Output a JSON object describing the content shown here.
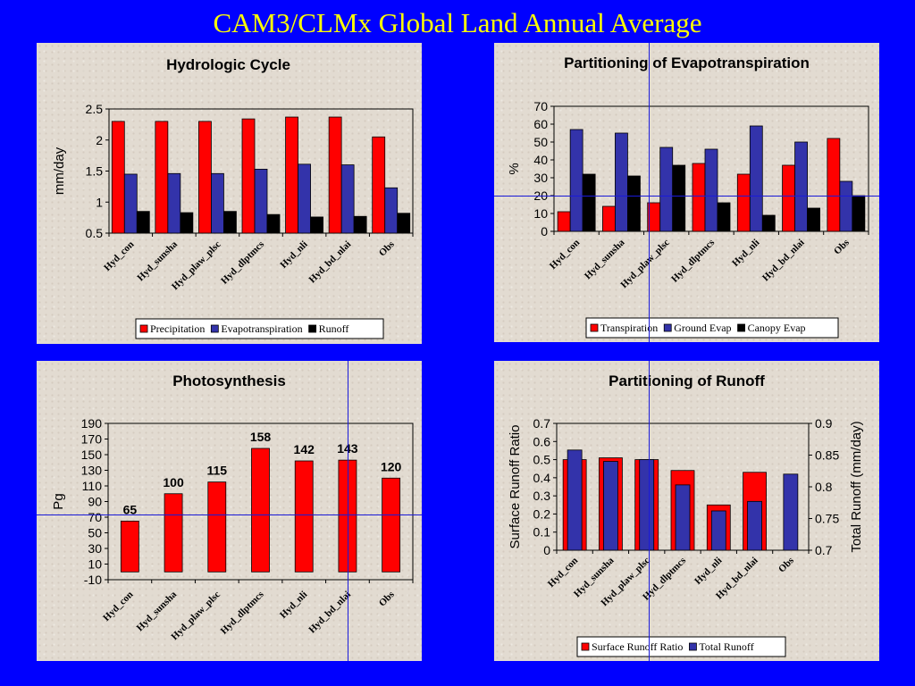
{
  "slide_title": "CAM3/CLMx Global Land Annual Average",
  "colors": {
    "background": "#0000ff",
    "title": "#ffff00",
    "red": "#ff0000",
    "blue": "#3333aa",
    "black": "#000000",
    "panel": "#e2dbd1"
  },
  "chart_data": [
    {
      "type": "bar",
      "title": "Hydrologic Cycle",
      "ylabel": "mm/day",
      "ylim": [
        0.5,
        2.5
      ],
      "yticks": [
        "0.5",
        "1",
        "1.5",
        "2",
        "2.5"
      ],
      "categories": [
        "Hyd_con",
        "Hyd_sunsha",
        "Hyd_plaw_plsc",
        "Hyd_dlptmcs",
        "Hyd_nli",
        "Hyd_bd_nlai",
        "Obs"
      ],
      "series": [
        {
          "name": "Precipitation",
          "color": "#ff0000",
          "values": [
            2.3,
            2.3,
            2.3,
            2.34,
            2.37,
            2.37,
            2.05
          ]
        },
        {
          "name": "Evapotranspiration",
          "color": "#3333aa",
          "values": [
            1.45,
            1.46,
            1.46,
            1.53,
            1.61,
            1.6,
            1.23
          ]
        },
        {
          "name": "Runoff",
          "color": "#000000",
          "values": [
            0.85,
            0.83,
            0.85,
            0.8,
            0.76,
            0.77,
            0.82
          ]
        }
      ],
      "legend": "bottom"
    },
    {
      "type": "bar",
      "title": "Partitioning of Evapotranspiration",
      "ylabel": "%",
      "ylim": [
        0,
        70
      ],
      "yticks": [
        "0",
        "10",
        "20",
        "30",
        "40",
        "50",
        "60",
        "70"
      ],
      "categories": [
        "Hyd_con",
        "Hyd_sunsha",
        "Hyd_plaw_plsc",
        "Hyd_dlptmcs",
        "Hyd_nli",
        "Hyd_bd_nlai",
        "Obs"
      ],
      "series": [
        {
          "name": "Transpiration",
          "color": "#ff0000",
          "values": [
            11,
            14,
            16,
            38,
            32,
            37,
            52
          ]
        },
        {
          "name": "Ground Evap",
          "color": "#3333aa",
          "values": [
            57,
            55,
            47,
            46,
            59,
            50,
            28
          ]
        },
        {
          "name": "Canopy Evap",
          "color": "#000000",
          "values": [
            32,
            31,
            37,
            16,
            9,
            13,
            20
          ]
        }
      ],
      "legend": "bottom"
    },
    {
      "type": "bar",
      "title": "Photosynthesis",
      "ylabel": "Pg",
      "ylim": [
        -10,
        190
      ],
      "yticks": [
        "-10",
        "10",
        "30",
        "50",
        "70",
        "90",
        "110",
        "130",
        "150",
        "170",
        "190"
      ],
      "categories": [
        "Hyd_con",
        "Hyd_sunsha",
        "Hyd_plaw_plsc",
        "Hyd_dlptmcs",
        "Hyd_nli",
        "Hyd_bd_nlai",
        "Obs"
      ],
      "series": [
        {
          "color": "#ff0000",
          "values": [
            65,
            100,
            115,
            158,
            142,
            143,
            120
          ]
        }
      ],
      "data_labels": [
        "65",
        "100",
        "115",
        "158",
        "142",
        "143",
        "120"
      ]
    },
    {
      "type": "bar",
      "title": "Partitioning of Runoff",
      "ylabel": "Surface Runoff Ratio",
      "ylim": [
        0,
        0.7
      ],
      "yticks": [
        "0",
        "0.1",
        "0.2",
        "0.3",
        "0.4",
        "0.5",
        "0.6",
        "0.7"
      ],
      "y2label": "Total Runoff (mm/day)",
      "y2lim": [
        0.7,
        0.9
      ],
      "y2ticks": [
        "0.7",
        "0.75",
        "0.8",
        "0.85",
        "0.9"
      ],
      "categories": [
        "Hyd_con",
        "Hyd_sunsha",
        "Hyd_plaw_plsc",
        "Hyd_dlptmcs",
        "Hyd_nli",
        "Hyd_bd_nlai",
        "Obs"
      ],
      "series": [
        {
          "name": "Surface Runoff Ratio",
          "color": "#ff0000",
          "axis": "left",
          "values": [
            0.5,
            0.51,
            0.5,
            0.44,
            0.25,
            0.43,
            null
          ]
        },
        {
          "name": "Total Runoff",
          "color": "#3333aa",
          "axis": "right",
          "values": [
            0.858,
            0.84,
            0.843,
            0.803,
            0.762,
            0.777,
            0.82
          ]
        }
      ],
      "legend": "bottom"
    }
  ]
}
